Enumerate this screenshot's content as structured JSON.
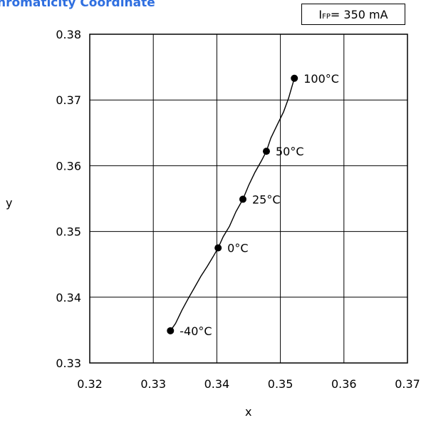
{
  "title": "hromaticity Coordinate",
  "condition": {
    "symbol": "I",
    "subscript": "FP",
    "value": " = 350 mA"
  },
  "chart_data": {
    "type": "line",
    "xlabel": "x",
    "ylabel": "y",
    "xlim": [
      0.32,
      0.37
    ],
    "ylim": [
      0.33,
      0.38
    ],
    "xticks": [
      "0.32",
      "0.33",
      "0.34",
      "0.35",
      "0.36",
      "0.37"
    ],
    "yticks": [
      "0.33",
      "0.34",
      "0.35",
      "0.36",
      "0.37",
      "0.38"
    ],
    "grid": true,
    "line": {
      "x": [
        0.3327,
        0.3335,
        0.3345,
        0.3355,
        0.3365,
        0.3375,
        0.3385,
        0.3395,
        0.3402,
        0.341,
        0.342,
        0.343,
        0.3441,
        0.345,
        0.346,
        0.347,
        0.3478,
        0.3485,
        0.3495,
        0.3505,
        0.3513,
        0.3518,
        0.3522
      ],
      "y": [
        0.3349,
        0.336,
        0.338,
        0.3398,
        0.3415,
        0.3432,
        0.3447,
        0.3463,
        0.3475,
        0.3492,
        0.3508,
        0.353,
        0.3549,
        0.357,
        0.359,
        0.3607,
        0.3622,
        0.3642,
        0.3662,
        0.3682,
        0.3703,
        0.372,
        0.3733
      ]
    },
    "points": [
      {
        "label": "-40°C",
        "x": 0.3327,
        "y": 0.3349
      },
      {
        "label": "0°C",
        "x": 0.3402,
        "y": 0.3475
      },
      {
        "label": "25°C",
        "x": 0.3441,
        "y": 0.3549
      },
      {
        "label": "50°C",
        "x": 0.3478,
        "y": 0.3622
      },
      {
        "label": "100°C",
        "x": 0.3522,
        "y": 0.3733
      }
    ]
  }
}
